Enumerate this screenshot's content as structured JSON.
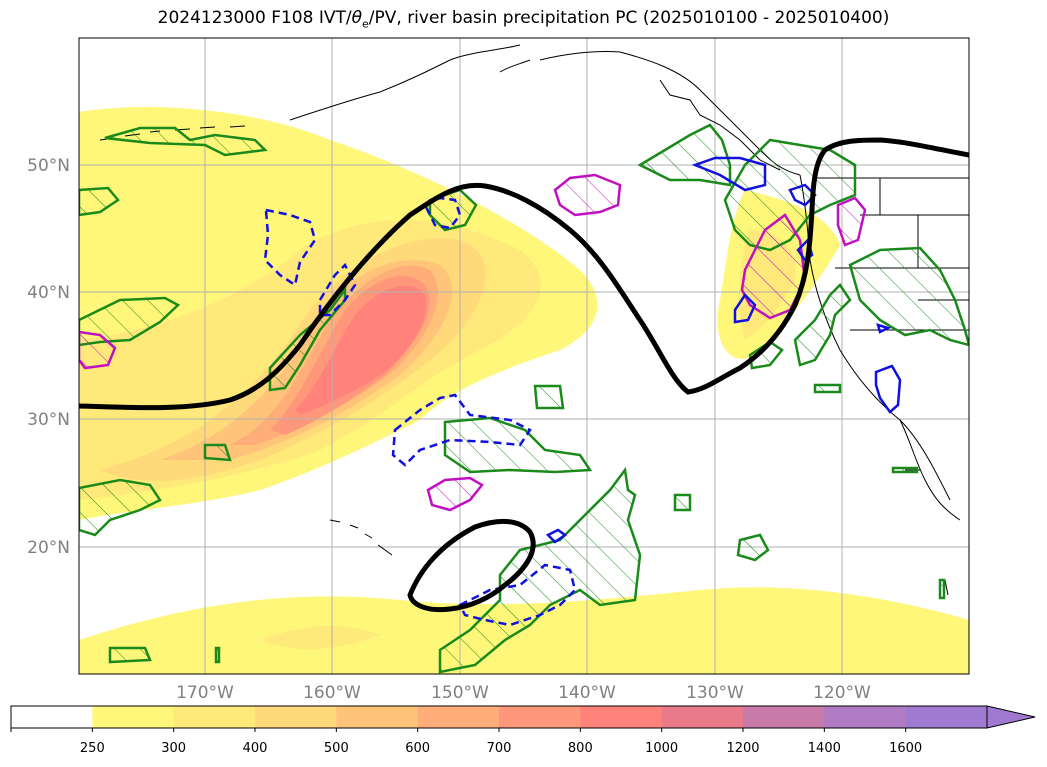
{
  "title": {
    "prefix": "2024123000 F108 IVT/",
    "theta": "θ",
    "theta_sub": "e",
    "suffix": "/PV, river basin precipitation PC (2025010100 - 2025010400)"
  },
  "lon_labels": [
    "170°W",
    "160°W",
    "150°W",
    "140°W",
    "130°W",
    "120°W"
  ],
  "lat_labels": [
    "50°N",
    "40°N",
    "30°N",
    "20°N"
  ],
  "colorbar": {
    "labels": [
      "250",
      "300",
      "400",
      "500",
      "600",
      "700",
      "800",
      "1000",
      "1200",
      "1400",
      "1600"
    ],
    "colors": [
      "#ffffff",
      "#fff77a",
      "#ffe97a",
      "#ffd97a",
      "#ffc47a",
      "#ffae7a",
      "#ff987a",
      "#ff837a",
      "#e87a8a",
      "#c87aa8",
      "#b07ac4",
      "#a07ad0"
    ]
  },
  "contour_colors": {
    "pv": "#000000",
    "green": "#1a8a1a",
    "blue": "#1010e0",
    "magenta": "#c010c0"
  }
}
